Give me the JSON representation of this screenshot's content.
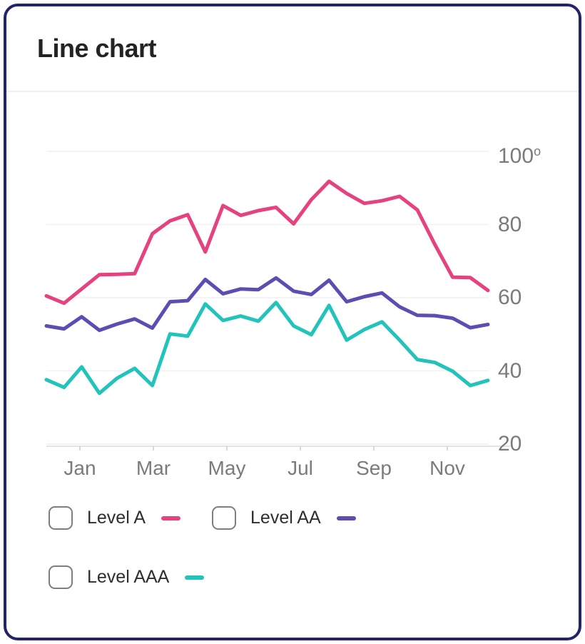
{
  "header": {
    "title": "Line chart"
  },
  "chart_data": {
    "type": "line",
    "title": "Line chart",
    "x_labels": [
      "Jan",
      "Mar",
      "May",
      "Jul",
      "Sep",
      "Nov"
    ],
    "y_tick_labels": [
      "100",
      "80",
      "60",
      "40",
      "20"
    ],
    "y_unit_superscript": "o",
    "ylim": [
      20,
      100
    ],
    "grid": "horizontal",
    "legend_position": "bottom",
    "series": [
      {
        "name": "Level A",
        "color": "#e5437f",
        "values": [
          60.5,
          58.5,
          62.4,
          66.3,
          66.4,
          66.6,
          77.5,
          81.0,
          82.7,
          72.5,
          85.2,
          82.5,
          83.8,
          84.7,
          80.2,
          86.8,
          91.8,
          88.5,
          85.8,
          86.5,
          87.7,
          84.0,
          74.5,
          65.6,
          65.5,
          62.0
        ]
      },
      {
        "name": "Level AA",
        "color": "#5f4cb2",
        "values": [
          52.3,
          51.5,
          54.8,
          51.1,
          52.8,
          54.2,
          51.7,
          58.9,
          59.2,
          65.0,
          61.1,
          62.4,
          62.2,
          65.4,
          61.8,
          60.9,
          64.8,
          58.9,
          60.3,
          61.3,
          57.5,
          55.2,
          55.1,
          54.4,
          51.8,
          52.7
        ]
      },
      {
        "name": "Level AAA",
        "color": "#22c3ba",
        "values": [
          37.6,
          35.5,
          41.1,
          33.9,
          38.0,
          40.7,
          36.0,
          50.1,
          49.5,
          58.3,
          53.8,
          55.0,
          53.6,
          58.7,
          52.3,
          49.9,
          57.9,
          48.4,
          51.3,
          53.4,
          48.4,
          43.1,
          42.3,
          39.9,
          36.0,
          37.4
        ]
      }
    ]
  },
  "legend": {
    "items": [
      {
        "label": "Level A",
        "checked": false
      },
      {
        "label": "Level AA",
        "checked": false
      },
      {
        "label": "Level AAA",
        "checked": false
      }
    ]
  },
  "colors": {
    "card_border": "#23226b",
    "title_text": "#232323",
    "axis_text": "#7b7b7b",
    "gridline": "#f1f1f1",
    "axis_line": "#e3e3e3",
    "tick_mark": "#d9d9d9"
  }
}
